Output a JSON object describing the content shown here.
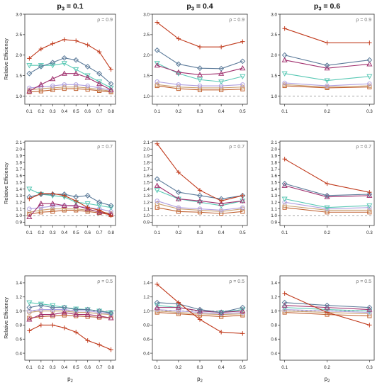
{
  "figure": {
    "ylabel": "Relative Efficiency",
    "xlabel": "p",
    "xlabel_sub": "2",
    "column_titles": [
      {
        "prefix": "p",
        "sub": "3",
        "suffix": " = 0.1"
      },
      {
        "prefix": "p",
        "sub": "3",
        "suffix": " = 0.4"
      },
      {
        "prefix": "p",
        "sub": "3",
        "suffix": " = 0.6"
      }
    ],
    "reference_line": 1.0,
    "series_styles": [
      {
        "color": "#c0391b",
        "marker": "plus"
      },
      {
        "color": "#5b7a99",
        "marker": "diamond"
      },
      {
        "color": "#a0306e",
        "marker": "triangle-up"
      },
      {
        "color": "#58c8b4",
        "marker": "triangle-down"
      },
      {
        "color": "#b0a0e0",
        "marker": "circle"
      },
      {
        "color": "#c9a070",
        "marker": "circle"
      },
      {
        "color": "#c06030",
        "marker": "square"
      }
    ]
  },
  "chart_data": [
    {
      "type": "line",
      "row": 0,
      "col": 0,
      "annotation": "ρ = 0.9",
      "ylim": [
        0.8,
        3.0
      ],
      "yticks": [
        1.0,
        1.5,
        2.0,
        2.5,
        3.0
      ],
      "x": [
        0.1,
        0.2,
        0.3,
        0.4,
        0.5,
        0.6,
        0.7,
        0.8
      ],
      "series": [
        {
          "values": [
            1.92,
            2.15,
            2.28,
            2.38,
            2.35,
            2.25,
            2.08,
            1.65
          ]
        },
        {
          "values": [
            1.55,
            1.72,
            1.82,
            1.93,
            1.88,
            1.72,
            1.55,
            1.3
          ]
        },
        {
          "values": [
            1.12,
            1.28,
            1.42,
            1.55,
            1.55,
            1.45,
            1.3,
            1.15
          ]
        },
        {
          "values": [
            1.75,
            1.75,
            1.75,
            1.8,
            1.65,
            1.5,
            1.35,
            1.2
          ]
        },
        {
          "values": [
            1.2,
            1.22,
            1.25,
            1.28,
            1.28,
            1.25,
            1.2,
            1.14
          ]
        },
        {
          "values": [
            1.15,
            1.18,
            1.2,
            1.22,
            1.22,
            1.2,
            1.16,
            1.12
          ]
        },
        {
          "values": [
            1.1,
            1.12,
            1.15,
            1.18,
            1.18,
            1.16,
            1.13,
            1.1
          ]
        }
      ]
    },
    {
      "type": "line",
      "row": 0,
      "col": 1,
      "annotation": "ρ = 0.9",
      "ylim": [
        0.8,
        3.0
      ],
      "yticks": [
        1.0,
        1.5,
        2.0,
        2.5,
        3.0
      ],
      "x": [
        0.1,
        0.2,
        0.3,
        0.4,
        0.5
      ],
      "series": [
        {
          "values": [
            2.8,
            2.4,
            2.2,
            2.2,
            2.33
          ]
        },
        {
          "values": [
            2.12,
            1.78,
            1.68,
            1.67,
            1.85
          ]
        },
        {
          "values": [
            1.75,
            1.58,
            1.52,
            1.55,
            1.68
          ]
        },
        {
          "values": [
            1.8,
            1.55,
            1.4,
            1.35,
            1.48
          ]
        },
        {
          "values": [
            1.35,
            1.28,
            1.25,
            1.25,
            1.28
          ]
        },
        {
          "values": [
            1.28,
            1.22,
            1.2,
            1.2,
            1.22
          ]
        },
        {
          "values": [
            1.25,
            1.18,
            1.15,
            1.15,
            1.17
          ]
        }
      ]
    },
    {
      "type": "line",
      "row": 0,
      "col": 2,
      "annotation": "ρ = 0.9",
      "ylim": [
        0.8,
        3.0
      ],
      "yticks": [
        1.0,
        1.5,
        2.0,
        2.5,
        3.0
      ],
      "x": [
        0.1,
        0.2,
        0.3
      ],
      "series": [
        {
          "values": [
            2.65,
            2.3,
            2.3
          ]
        },
        {
          "values": [
            2.0,
            1.75,
            1.88
          ]
        },
        {
          "values": [
            1.88,
            1.68,
            1.78
          ]
        },
        {
          "values": [
            1.55,
            1.38,
            1.48
          ]
        },
        {
          "values": [
            1.32,
            1.25,
            1.3
          ]
        },
        {
          "values": [
            1.28,
            1.22,
            1.25
          ]
        },
        {
          "values": [
            1.25,
            1.2,
            1.22
          ]
        }
      ]
    },
    {
      "type": "line",
      "row": 1,
      "col": 0,
      "annotation": "ρ = 0.7",
      "ylim": [
        0.85,
        2.12
      ],
      "yticks": [
        0.9,
        1.0,
        1.1,
        1.2,
        1.3,
        1.4,
        1.5,
        1.6,
        1.7,
        1.8,
        1.9,
        2.0,
        2.1
      ],
      "x": [
        0.1,
        0.2,
        0.3,
        0.4,
        0.5,
        0.6,
        0.7,
        0.8
      ],
      "series": [
        {
          "values": [
            1.25,
            1.33,
            1.33,
            1.3,
            1.22,
            1.12,
            1.08,
            1.0
          ]
        },
        {
          "values": [
            1.28,
            1.32,
            1.32,
            1.32,
            1.28,
            1.3,
            1.2,
            1.15
          ]
        },
        {
          "values": [
            0.98,
            1.18,
            1.18,
            1.15,
            1.15,
            1.1,
            1.05,
            1.02
          ]
        },
        {
          "values": [
            1.4,
            1.32,
            1.3,
            1.28,
            1.2,
            1.18,
            1.15,
            1.12
          ]
        },
        {
          "values": [
            1.1,
            1.12,
            1.14,
            1.15,
            1.14,
            1.12,
            1.1,
            1.06
          ]
        },
        {
          "values": [
            1.05,
            1.08,
            1.1,
            1.1,
            1.1,
            1.08,
            1.06,
            1.03
          ]
        },
        {
          "values": [
            1.02,
            1.05,
            1.06,
            1.08,
            1.08,
            1.06,
            1.04,
            1.01
          ]
        }
      ]
    },
    {
      "type": "line",
      "row": 1,
      "col": 1,
      "annotation": "ρ = 0.7",
      "ylim": [
        0.85,
        2.12
      ],
      "yticks": [
        0.9,
        1.0,
        1.1,
        1.2,
        1.3,
        1.4,
        1.5,
        1.6,
        1.7,
        1.8,
        1.9,
        2.0,
        2.1
      ],
      "x": [
        0.1,
        0.2,
        0.3,
        0.4,
        0.5
      ],
      "series": [
        {
          "values": [
            2.08,
            1.65,
            1.38,
            1.22,
            1.3
          ]
        },
        {
          "values": [
            1.55,
            1.35,
            1.3,
            1.25,
            1.3
          ]
        },
        {
          "values": [
            1.45,
            1.25,
            1.22,
            1.18,
            1.22
          ]
        },
        {
          "values": [
            1.38,
            1.25,
            1.2,
            1.15,
            1.22
          ]
        },
        {
          "values": [
            1.22,
            1.12,
            1.1,
            1.08,
            1.12
          ]
        },
        {
          "values": [
            1.18,
            1.1,
            1.08,
            1.06,
            1.1
          ]
        },
        {
          "values": [
            1.12,
            1.06,
            1.05,
            1.03,
            1.06
          ]
        }
      ]
    },
    {
      "type": "line",
      "row": 1,
      "col": 2,
      "annotation": "ρ = 0.7",
      "ylim": [
        0.85,
        2.12
      ],
      "yticks": [
        0.9,
        1.0,
        1.1,
        1.2,
        1.3,
        1.4,
        1.5,
        1.6,
        1.7,
        1.8,
        1.9,
        2.0,
        2.1
      ],
      "x": [
        0.1,
        0.2,
        0.3
      ],
      "series": [
        {
          "values": [
            1.85,
            1.48,
            1.35
          ]
        },
        {
          "values": [
            1.48,
            1.3,
            1.32
          ]
        },
        {
          "values": [
            1.45,
            1.28,
            1.3
          ]
        },
        {
          "values": [
            1.25,
            1.12,
            1.15
          ]
        },
        {
          "values": [
            1.2,
            1.1,
            1.12
          ]
        },
        {
          "values": [
            1.15,
            1.08,
            1.08
          ]
        },
        {
          "values": [
            1.12,
            1.05,
            1.05
          ]
        }
      ]
    },
    {
      "type": "line",
      "row": 2,
      "col": 0,
      "annotation": "ρ = 0.5",
      "ylim": [
        0.3,
        1.5
      ],
      "yticks": [
        0.4,
        0.6,
        0.8,
        1.0,
        1.2,
        1.4
      ],
      "x": [
        0.1,
        0.2,
        0.3,
        0.4,
        0.5,
        0.6,
        0.7,
        0.8
      ],
      "series": [
        {
          "values": [
            0.72,
            0.8,
            0.8,
            0.76,
            0.7,
            0.58,
            0.52,
            0.45
          ]
        },
        {
          "values": [
            1.05,
            1.08,
            1.05,
            1.05,
            1.02,
            1.02,
            1.0,
            0.97
          ]
        },
        {
          "values": [
            0.88,
            0.95,
            0.95,
            0.98,
            0.95,
            0.95,
            0.93,
            0.9
          ]
        },
        {
          "values": [
            1.12,
            1.1,
            1.08,
            1.05,
            1.03,
            1.02,
            1.0,
            0.98
          ]
        },
        {
          "values": [
            1.0,
            1.02,
            1.02,
            1.02,
            1.0,
            1.0,
            0.98,
            0.96
          ]
        },
        {
          "values": [
            0.98,
            1.0,
            1.0,
            1.0,
            0.98,
            0.98,
            0.96,
            0.95
          ]
        },
        {
          "values": [
            0.9,
            0.92,
            0.93,
            0.94,
            0.93,
            0.92,
            0.91,
            0.9
          ]
        }
      ]
    },
    {
      "type": "line",
      "row": 2,
      "col": 1,
      "annotation": "ρ = 0.5",
      "ylim": [
        0.3,
        1.5
      ],
      "yticks": [
        0.4,
        0.6,
        0.8,
        1.0,
        1.2,
        1.4
      ],
      "x": [
        0.1,
        0.2,
        0.3,
        0.4,
        0.5
      ],
      "series": [
        {
          "values": [
            1.38,
            1.12,
            0.88,
            0.7,
            0.68
          ]
        },
        {
          "values": [
            1.12,
            1.1,
            1.02,
            0.98,
            1.05
          ]
        },
        {
          "values": [
            1.05,
            1.05,
            1.0,
            0.98,
            1.0
          ]
        },
        {
          "values": [
            1.08,
            1.05,
            1.0,
            0.98,
            1.02
          ]
        },
        {
          "values": [
            1.02,
            1.0,
            0.98,
            0.96,
            0.98
          ]
        },
        {
          "values": [
            1.0,
            0.98,
            0.96,
            0.95,
            0.96
          ]
        },
        {
          "values": [
            0.98,
            0.96,
            0.94,
            0.92,
            0.94
          ]
        }
      ]
    },
    {
      "type": "line",
      "row": 2,
      "col": 2,
      "annotation": "ρ = 0.5",
      "ylim": [
        0.3,
        1.5
      ],
      "yticks": [
        0.4,
        0.6,
        0.8,
        1.0,
        1.2,
        1.4
      ],
      "x": [
        0.1,
        0.2,
        0.3
      ],
      "series": [
        {
          "values": [
            1.25,
            0.98,
            0.8
          ]
        },
        {
          "values": [
            1.12,
            1.08,
            1.05
          ]
        },
        {
          "values": [
            1.08,
            1.05,
            1.02
          ]
        },
        {
          "values": [
            1.05,
            1.02,
            1.0
          ]
        },
        {
          "values": [
            1.02,
            1.0,
            0.98
          ]
        },
        {
          "values": [
            1.0,
            0.98,
            0.96
          ]
        },
        {
          "values": [
            0.98,
            0.95,
            0.93
          ]
        }
      ]
    }
  ]
}
